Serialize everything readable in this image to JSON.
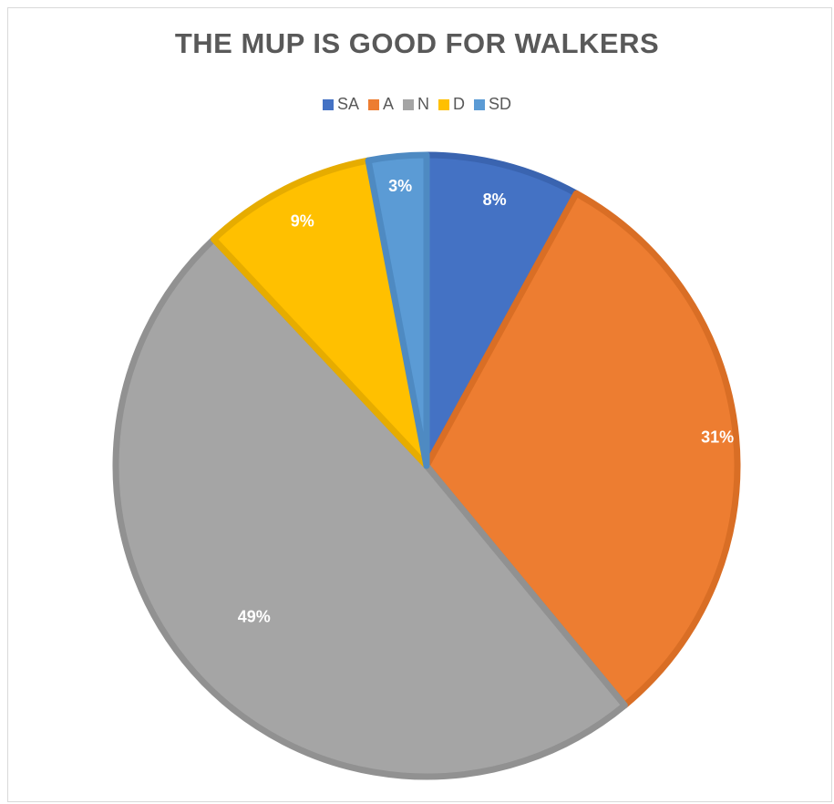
{
  "chart_data": {
    "type": "pie",
    "title": "THE MUP IS GOOD FOR WALKERS",
    "legend_position": "top",
    "slices": [
      {
        "name": "SA",
        "value": 8,
        "label": "8%",
        "color": "#4472C4",
        "border": "#3A64B0"
      },
      {
        "name": "A",
        "value": 31,
        "label": "31%",
        "color": "#ED7D31",
        "border": "#D96E25"
      },
      {
        "name": "N",
        "value": 49,
        "label": "49%",
        "color": "#A5A5A5",
        "border": "#919191"
      },
      {
        "name": "D",
        "value": 9,
        "label": "9%",
        "color": "#FFC000",
        "border": "#E6AC00"
      },
      {
        "name": "SD",
        "value": 3,
        "label": "3%",
        "color": "#5B9BD5",
        "border": "#4E8AC2"
      }
    ]
  }
}
